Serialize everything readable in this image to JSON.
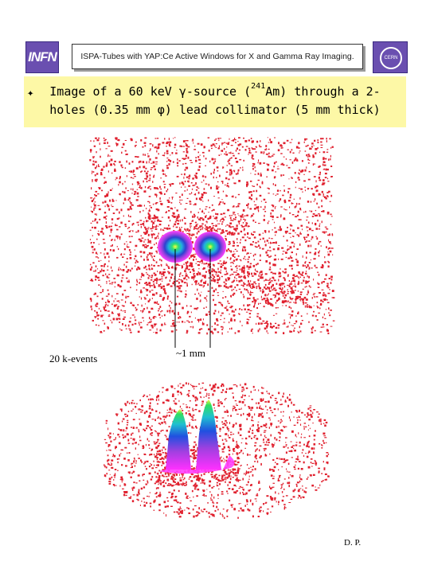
{
  "header": {
    "logo_left_text": "INFN",
    "title": "ISPA-Tubes with YAP:Ce Active Windows for X and Gamma Ray Imaging.",
    "logo_right_text": "CERN"
  },
  "title_box": {
    "bullet": "✦",
    "line1_pre": "Image of a 60 keV γ-source (",
    "line1_sup": "241",
    "line1_post": "Am) through a 2-",
    "line2": "holes (0.35 mm φ) lead collimator (5 mm thick)"
  },
  "captions": {
    "events": "20 k-events",
    "scale": "~1 mm",
    "author": "D. P."
  },
  "colors": {
    "noise": "#e0202e",
    "title_bg": "#fdf8a6",
    "logo": "#6a4fb0"
  }
}
